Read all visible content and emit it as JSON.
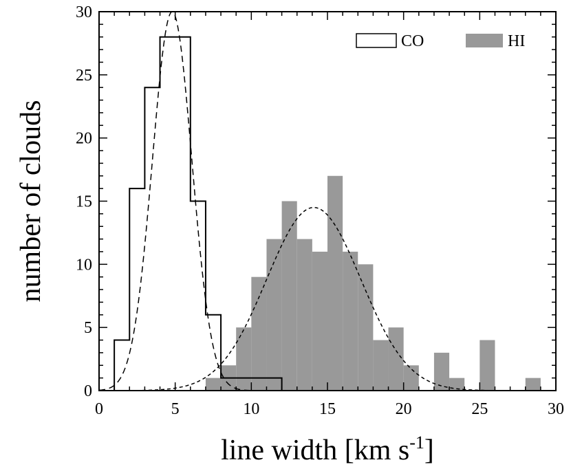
{
  "chart_data": {
    "type": "bar",
    "xlabel": "line width [km s",
    "xlabel_sup": "-1",
    "xlabel_end": "]",
    "ylabel": "number of clouds",
    "xlim": [
      0,
      30
    ],
    "ylim": [
      0,
      30
    ],
    "xticks": [
      0,
      5,
      10,
      15,
      20,
      25,
      30
    ],
    "yticks": [
      0,
      5,
      10,
      15,
      20,
      25,
      30
    ],
    "xtick_labels": [
      "0",
      "5",
      "10",
      "15",
      "20",
      "25",
      "30"
    ],
    "ytick_labels": [
      "0",
      "5",
      "10",
      "15",
      "20",
      "25",
      "30"
    ],
    "grid": false,
    "legend_position": "top-right",
    "bin_width": 1,
    "series": [
      {
        "name": "CO",
        "style": "step-outline",
        "color": "#000000",
        "bin_starts": [
          1,
          2,
          3,
          4,
          5,
          6,
          7,
          8,
          9,
          10,
          11
        ],
        "values": [
          4,
          16,
          24,
          28,
          28,
          15,
          6,
          1,
          1,
          1,
          1
        ],
        "fit": {
          "type": "gaussian",
          "amplitude": 30,
          "mean": 4.8,
          "sigma": 1.3,
          "dash": "dash"
        }
      },
      {
        "name": "HI",
        "style": "filled",
        "color": "#999999",
        "bin_starts": [
          7,
          8,
          9,
          10,
          11,
          12,
          13,
          14,
          15,
          16,
          17,
          18,
          19,
          20,
          21,
          22,
          23,
          24,
          25,
          26,
          27,
          28
        ],
        "values": [
          1,
          2,
          5,
          9,
          12,
          15,
          12,
          11,
          17,
          11,
          10,
          4,
          5,
          2,
          0,
          3,
          1,
          0,
          4,
          0,
          0,
          1
        ],
        "fit": {
          "type": "gaussian",
          "amplitude": 14.5,
          "mean": 14.1,
          "sigma": 3.1,
          "dash": "short-dash"
        }
      }
    ]
  }
}
